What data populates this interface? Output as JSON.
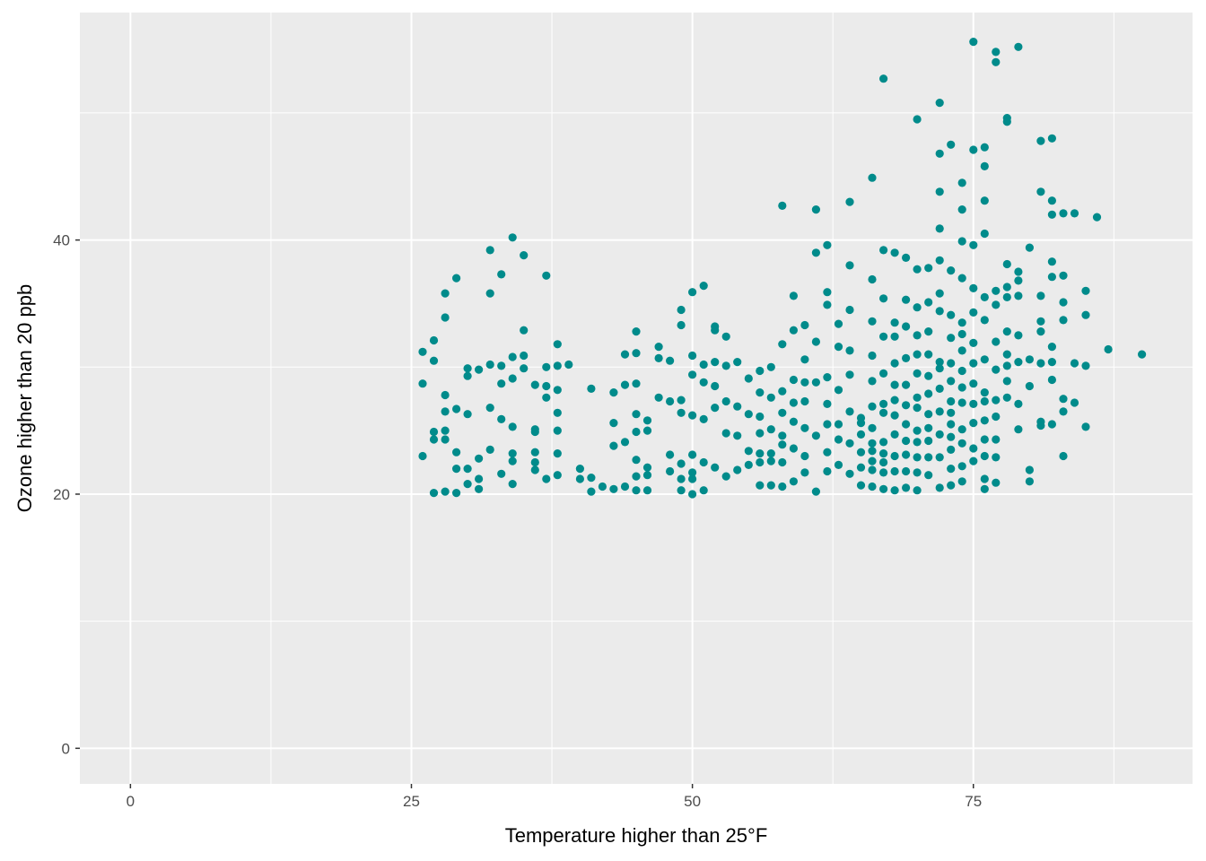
{
  "chart_data": {
    "type": "scatter",
    "title": "",
    "xlabel": "Temperature higher than 25°F",
    "ylabel": "Ozone higher than 20 ppb",
    "xlim": [
      -4.5,
      94.5
    ],
    "ylim": [
      -2.8,
      57.9
    ],
    "x_ticks": [
      0,
      25,
      50,
      75
    ],
    "x_tick_labels": [
      "0",
      "25",
      "50",
      "75"
    ],
    "y_ticks": [
      0,
      20,
      40
    ],
    "y_tick_labels": [
      "0",
      "20",
      "40"
    ],
    "grid": true,
    "legend": "none",
    "point_color": "#008b8b",
    "panel_background": "#ebebeb",
    "grid_color": "#ffffff",
    "x": [
      26,
      26,
      26,
      27,
      27,
      27,
      27,
      27,
      28,
      28,
      28,
      28,
      28,
      28,
      28,
      29,
      29,
      29,
      29,
      29,
      30,
      30,
      30,
      30,
      30,
      31,
      31,
      31,
      31,
      32,
      32,
      32,
      32,
      32,
      33,
      33,
      33,
      33,
      33,
      34,
      34,
      34,
      34,
      34,
      34,
      34,
      35,
      35,
      35,
      35,
      36,
      36,
      36,
      36,
      36,
      36,
      37,
      37,
      37,
      37,
      37,
      38,
      38,
      38,
      38,
      38,
      38,
      38,
      39,
      40,
      40,
      41,
      41,
      41,
      42,
      43,
      43,
      43,
      43,
      44,
      44,
      44,
      44,
      45,
      45,
      45,
      45,
      45,
      45,
      45,
      45,
      46,
      46,
      46,
      46,
      46,
      47,
      47,
      47,
      48,
      48,
      48,
      48,
      49,
      49,
      49,
      49,
      49,
      49,
      49,
      50,
      50,
      50,
      50,
      50,
      50,
      50,
      50,
      51,
      51,
      51,
      51,
      51,
      51,
      52,
      52,
      52,
      52,
      52,
      52,
      53,
      53,
      53,
      53,
      53,
      54,
      54,
      54,
      54,
      55,
      55,
      55,
      55,
      56,
      56,
      56,
      56,
      56,
      56,
      56,
      57,
      57,
      57,
      57,
      57,
      57,
      58,
      58,
      58,
      58,
      58,
      58,
      58,
      58,
      59,
      59,
      59,
      59,
      59,
      59,
      59,
      60,
      60,
      60,
      60,
      60,
      60,
      60,
      61,
      61,
      61,
      61,
      61,
      61,
      62,
      62,
      62,
      62,
      62,
      62,
      62,
      62,
      63,
      63,
      63,
      63,
      63,
      63,
      64,
      64,
      64,
      64,
      64,
      64,
      64,
      64,
      65,
      65,
      65,
      65,
      65,
      65,
      66,
      66,
      66,
      66,
      66,
      66,
      66,
      66,
      66,
      66,
      66,
      66,
      67,
      67,
      67,
      67,
      67,
      67,
      67,
      67,
      67,
      67,
      67,
      67,
      68,
      68,
      68,
      68,
      68,
      68,
      68,
      68,
      68,
      68,
      68,
      69,
      69,
      69,
      69,
      69,
      69,
      69,
      69,
      69,
      69,
      69,
      70,
      70,
      70,
      70,
      70,
      70,
      70,
      70,
      70,
      70,
      70,
      70,
      70,
      71,
      71,
      71,
      71,
      71,
      71,
      71,
      71,
      71,
      71,
      71,
      72,
      72,
      72,
      72,
      72,
      72,
      72,
      72,
      72,
      72,
      72,
      72,
      72,
      72,
      73,
      73,
      73,
      73,
      73,
      73,
      73,
      73,
      73,
      73,
      73,
      73,
      73,
      74,
      74,
      74,
      74,
      74,
      74,
      74,
      74,
      74,
      74,
      74,
      74,
      74,
      74,
      75,
      75,
      75,
      75,
      75,
      75,
      75,
      75,
      75,
      75,
      75,
      75,
      76,
      76,
      76,
      76,
      76,
      76,
      76,
      76,
      76,
      76,
      76,
      76,
      76,
      76,
      77,
      77,
      77,
      77,
      77,
      77,
      77,
      77,
      77,
      77,
      77,
      78,
      78,
      78,
      78,
      78,
      78,
      78,
      78,
      78,
      78,
      79,
      79,
      79,
      79,
      79,
      79,
      79,
      79,
      80,
      80,
      80,
      80,
      80,
      81,
      81,
      81,
      81,
      81,
      81,
      81,
      81,
      82,
      82,
      82,
      82,
      82,
      82,
      82,
      82,
      82,
      83,
      83,
      83,
      83,
      83,
      83,
      83,
      84,
      84,
      84,
      85,
      85,
      85,
      85,
      86,
      87,
      90
    ],
    "y": [
      31.2,
      28.7,
      23.0,
      24.9,
      32.1,
      30.5,
      20.1,
      24.3,
      35.8,
      33.9,
      27.8,
      26.5,
      25.0,
      24.3,
      20.2,
      37.0,
      26.7,
      23.3,
      20.1,
      22.0,
      29.9,
      29.3,
      26.3,
      22.0,
      20.8,
      29.8,
      22.8,
      21.2,
      20.4,
      39.2,
      35.8,
      30.2,
      26.8,
      23.5,
      37.3,
      30.1,
      28.7,
      25.9,
      21.6,
      40.2,
      30.8,
      29.1,
      25.3,
      23.2,
      22.6,
      20.8,
      38.8,
      32.9,
      30.9,
      29.9,
      28.6,
      25.1,
      24.9,
      23.3,
      22.5,
      21.9,
      37.2,
      30.0,
      28.5,
      27.6,
      21.2,
      31.8,
      30.1,
      28.2,
      26.4,
      25.0,
      23.2,
      21.5,
      30.2,
      22.0,
      21.2,
      28.3,
      21.3,
      20.2,
      20.6,
      28.0,
      25.6,
      23.8,
      20.4,
      31.0,
      28.6,
      24.1,
      20.6,
      32.8,
      31.1,
      28.7,
      26.3,
      24.9,
      22.7,
      21.4,
      20.3,
      25.8,
      25.0,
      22.1,
      21.5,
      20.3,
      31.6,
      30.7,
      27.6,
      30.5,
      27.3,
      23.1,
      21.8,
      34.5,
      33.3,
      27.4,
      26.4,
      22.4,
      21.2,
      20.3,
      35.9,
      30.9,
      29.4,
      26.2,
      23.1,
      21.7,
      21.2,
      20.0,
      36.4,
      30.2,
      28.8,
      25.9,
      22.5,
      20.3,
      33.2,
      32.9,
      30.4,
      28.5,
      26.8,
      22.1,
      32.4,
      30.1,
      27.3,
      24.8,
      21.4,
      30.4,
      26.9,
      24.6,
      21.9,
      29.1,
      26.3,
      23.4,
      22.3,
      29.7,
      28.0,
      26.1,
      24.8,
      23.2,
      22.5,
      20.7,
      30.0,
      27.6,
      25.1,
      23.2,
      22.6,
      20.7,
      42.7,
      31.8,
      28.1,
      26.4,
      24.6,
      23.9,
      22.5,
      20.6,
      35.6,
      32.9,
      29.0,
      27.2,
      25.7,
      23.6,
      21.0,
      33.3,
      30.6,
      28.8,
      27.3,
      25.2,
      23.0,
      21.7,
      42.4,
      39.0,
      32.0,
      28.8,
      24.6,
      20.2,
      39.6,
      35.9,
      34.9,
      29.2,
      27.1,
      25.5,
      23.3,
      21.8,
      33.4,
      31.6,
      28.2,
      25.5,
      24.3,
      22.3,
      43.0,
      38.0,
      34.5,
      31.3,
      29.4,
      26.5,
      24.0,
      21.6,
      26.0,
      25.6,
      24.7,
      23.3,
      22.1,
      20.7,
      44.9,
      36.9,
      33.6,
      30.9,
      28.9,
      26.9,
      25.2,
      24.0,
      23.4,
      22.6,
      21.9,
      20.6,
      52.7,
      39.2,
      35.4,
      32.4,
      29.5,
      27.1,
      26.4,
      24.1,
      23.2,
      22.5,
      21.7,
      20.4,
      39.0,
      33.5,
      32.4,
      30.3,
      28.6,
      27.4,
      26.2,
      24.7,
      23.0,
      21.8,
      20.3,
      38.6,
      35.3,
      33.2,
      30.7,
      28.6,
      27.0,
      25.5,
      24.2,
      23.1,
      21.8,
      20.5,
      49.5,
      37.7,
      34.7,
      32.5,
      31.0,
      29.5,
      27.6,
      26.8,
      25.0,
      24.1,
      22.9,
      21.7,
      20.3,
      37.8,
      35.1,
      32.8,
      31.0,
      29.3,
      27.9,
      26.3,
      25.2,
      24.2,
      22.9,
      21.5,
      50.8,
      46.8,
      43.8,
      40.9,
      38.4,
      35.8,
      34.4,
      30.4,
      29.9,
      28.3,
      26.5,
      24.7,
      22.9,
      20.5,
      47.5,
      37.6,
      34.1,
      32.3,
      30.3,
      28.9,
      27.3,
      26.4,
      25.5,
      24.5,
      23.5,
      22.0,
      20.7,
      44.5,
      42.4,
      39.9,
      37.0,
      33.5,
      32.6,
      31.3,
      29.7,
      28.4,
      27.2,
      25.1,
      24.0,
      22.2,
      21.0,
      55.6,
      47.1,
      39.6,
      36.2,
      34.3,
      31.9,
      30.3,
      28.7,
      27.1,
      25.6,
      23.6,
      22.6,
      47.3,
      45.8,
      43.1,
      40.5,
      35.5,
      33.7,
      30.6,
      28.0,
      27.3,
      25.8,
      24.3,
      23.0,
      21.2,
      20.4,
      54.8,
      54.0,
      36.0,
      34.9,
      32.0,
      29.8,
      27.4,
      26.1,
      24.3,
      22.9,
      20.9,
      49.6,
      49.3,
      38.1,
      36.3,
      35.5,
      32.8,
      31.0,
      30.1,
      28.9,
      27.6,
      55.2,
      37.5,
      36.8,
      35.6,
      32.5,
      30.4,
      27.1,
      25.1,
      39.4,
      30.6,
      28.5,
      21.9,
      21.0,
      47.8,
      43.8,
      35.6,
      33.6,
      32.8,
      30.3,
      25.7,
      25.4,
      48.0,
      43.1,
      42.0,
      38.3,
      37.1,
      31.6,
      30.4,
      29.0,
      25.5,
      42.1,
      37.2,
      35.1,
      33.7,
      27.5,
      26.5,
      23.0,
      42.1,
      30.3,
      27.2,
      36.0,
      34.1,
      30.1,
      25.3,
      41.8,
      31.4,
      31.0
    ]
  }
}
